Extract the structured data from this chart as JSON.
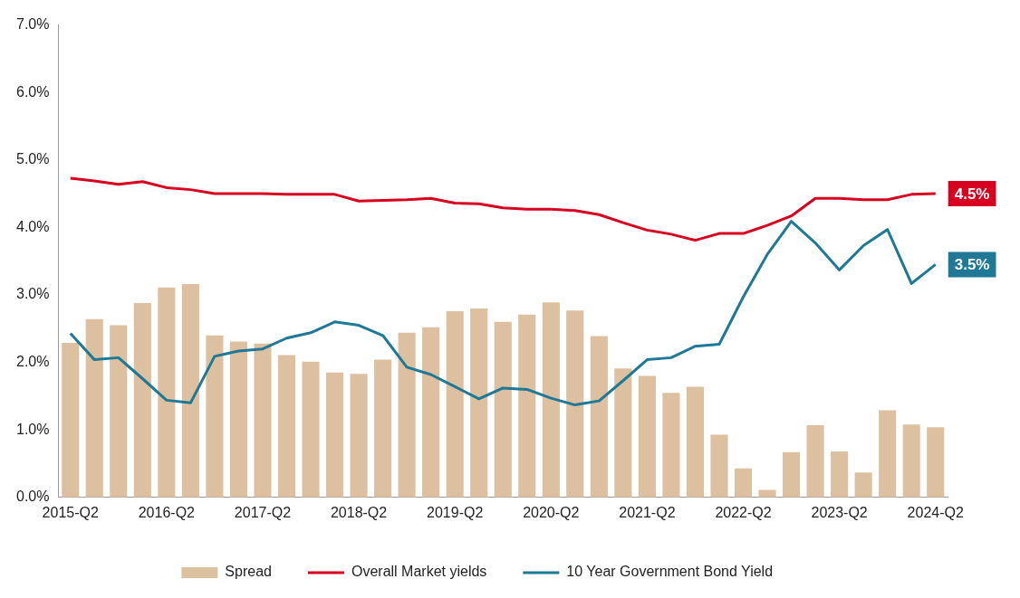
{
  "chart_data": {
    "type": "bar",
    "categories": [
      "2015-Q2",
      null,
      null,
      null,
      "2016-Q2",
      null,
      null,
      null,
      "2017-Q2",
      null,
      null,
      null,
      "2018-Q2",
      null,
      null,
      null,
      "2019-Q2",
      null,
      null,
      null,
      "2020-Q2",
      null,
      null,
      null,
      "2021-Q2",
      null,
      null,
      null,
      "2022-Q2",
      null,
      null,
      null,
      "2023-Q2",
      null,
      null,
      null,
      "2024-Q2"
    ],
    "series": [
      {
        "name": "Spread",
        "color": "#dcc0a0",
        "values": [
          2.29,
          2.64,
          2.55,
          2.88,
          3.11,
          3.16,
          2.4,
          2.31,
          2.28,
          2.11,
          2.01,
          1.85,
          1.83,
          2.04,
          2.44,
          2.52,
          2.76,
          2.8,
          2.6,
          2.71,
          2.89,
          2.77,
          2.39,
          1.91,
          1.8,
          1.55,
          1.64,
          0.93,
          0.43,
          0.11,
          0.67,
          1.07,
          0.68,
          0.37,
          1.29,
          1.08,
          1.04
        ]
      },
      {
        "name": "Overall Market yields",
        "type": "line",
        "color": "#d7001e",
        "values": [
          4.73,
          4.69,
          4.64,
          4.68,
          4.59,
          4.56,
          4.5,
          4.5,
          4.5,
          4.49,
          4.49,
          4.49,
          4.39,
          4.4,
          4.41,
          4.43,
          4.36,
          4.35,
          4.29,
          4.27,
          4.27,
          4.25,
          4.19,
          4.07,
          3.96,
          3.9,
          3.81,
          3.91,
          3.91,
          4.03,
          4.17,
          4.43,
          4.43,
          4.41,
          4.41,
          4.49,
          4.5
        ]
      },
      {
        "name": "10 Year Government Bond Yield",
        "type": "line",
        "color": "#1e7896",
        "values": [
          2.43,
          2.04,
          2.07,
          1.76,
          1.44,
          1.4,
          2.09,
          2.17,
          2.2,
          2.36,
          2.44,
          2.6,
          2.55,
          2.4,
          1.93,
          1.82,
          1.64,
          1.46,
          1.62,
          1.6,
          1.47,
          1.37,
          1.43,
          1.73,
          2.04,
          2.07,
          2.24,
          2.27,
          2.97,
          3.6,
          4.09,
          3.77,
          3.37,
          3.73,
          3.97,
          3.17,
          3.45
        ]
      }
    ],
    "ylim": [
      0,
      7
    ],
    "yticks": [
      {
        "value": 0,
        "label": "0.0%"
      },
      {
        "value": 1,
        "label": "1.0%"
      },
      {
        "value": 2,
        "label": "2.0%"
      },
      {
        "value": 3,
        "label": "3.0%"
      },
      {
        "value": 4,
        "label": "4.0%"
      },
      {
        "value": 5,
        "label": "5.0%"
      },
      {
        "value": 6,
        "label": "6.0%"
      },
      {
        "value": 7,
        "label": "7.0%"
      }
    ],
    "annotations": [
      {
        "text": "4.5%",
        "x": "2024-Q2",
        "y": 4.5
      },
      {
        "text": "3.5%",
        "x": "2024-Q2",
        "y": 3.45
      }
    ],
    "grid": false,
    "legend": "bottom",
    "marker": "none",
    "line_style": "solid"
  }
}
